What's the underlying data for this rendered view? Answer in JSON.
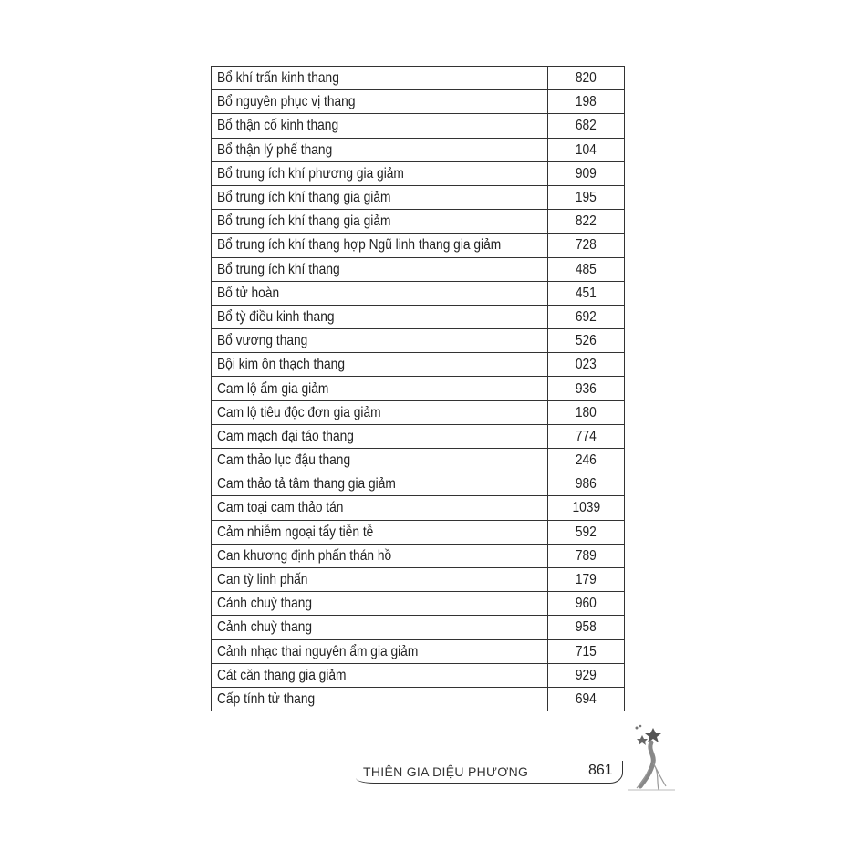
{
  "rows": [
    {
      "name": "Bổ khí trấn kinh thang",
      "page": "820"
    },
    {
      "name": "Bổ nguyên phục vị thang",
      "page": "198"
    },
    {
      "name": "Bổ thận cố kinh thang",
      "page": "682"
    },
    {
      "name": "Bổ thận lý phế thang",
      "page": "104"
    },
    {
      "name": "Bổ trung ích khí phương gia giảm",
      "page": "909"
    },
    {
      "name": "Bổ trung ích khí thang gia giảm",
      "page": "195"
    },
    {
      "name": "Bổ trung ích khí thang gia giảm",
      "page": "822"
    },
    {
      "name": "Bổ trung ích khí thang hợp Ngũ linh thang gia giảm",
      "page": "728"
    },
    {
      "name": "Bổ trung ích khí thang",
      "page": "485"
    },
    {
      "name": "Bổ tử hoàn",
      "page": "451"
    },
    {
      "name": "Bổ tỳ điều kinh thang",
      "page": "692"
    },
    {
      "name": "Bổ vương thang",
      "page": "526"
    },
    {
      "name": "Bội kim ôn thạch thang",
      "page": "023"
    },
    {
      "name": "Cam lộ ẩm gia giảm",
      "page": "936"
    },
    {
      "name": "Cam lộ tiêu độc đơn gia giảm",
      "page": "180"
    },
    {
      "name": "Cam mạch đại táo thang",
      "page": "774"
    },
    {
      "name": "Cam thảo lục đậu thang",
      "page": "246"
    },
    {
      "name": "Cam thảo tả tâm thang gia giảm",
      "page": "986"
    },
    {
      "name": "Cam toại cam thảo tán",
      "page": "1039"
    },
    {
      "name": "Cảm nhiễm ngoại tẩy tiễn tễ",
      "page": "592"
    },
    {
      "name": "Can khương định phấn thán hồ",
      "page": "789"
    },
    {
      "name": "Can tỳ linh phấn",
      "page": "179"
    },
    {
      "name": "Cảnh chuỳ thang",
      "page": "960"
    },
    {
      "name": "Cảnh chuỳ thang",
      "page": "958"
    },
    {
      "name": "Cảnh nhạc thai nguyên ẩm gia giảm",
      "page": "715"
    },
    {
      "name": "Cát căn thang gia giảm",
      "page": "929"
    },
    {
      "name": "Cấp tính tử thang",
      "page": "694"
    }
  ],
  "footer": {
    "title": "THIÊN GIA DIỆU PHƯƠNG",
    "page_number": "861",
    "ornament": "ginseng-illustration"
  }
}
